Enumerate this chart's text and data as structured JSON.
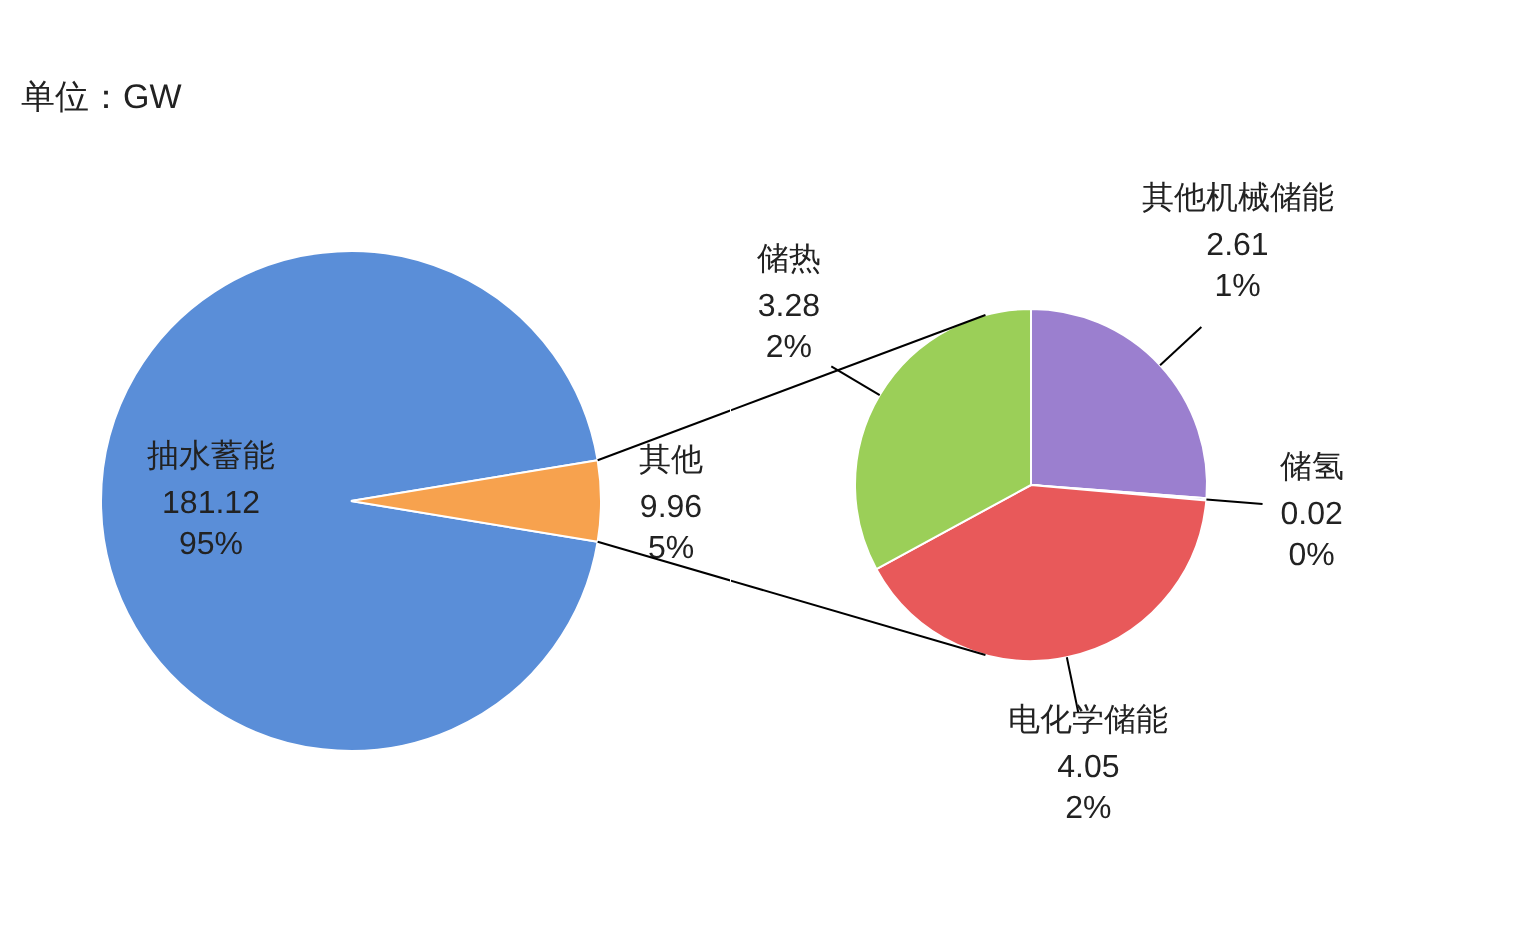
{
  "chart_data": [
    {
      "type": "pie",
      "title": "单位：GW",
      "categories": [
        "抽水蓄能",
        "其他"
      ],
      "values": [
        181.12,
        9.96
      ],
      "colors": [
        "#5a8ed8",
        "#f7a24e"
      ],
      "value_labels": [
        "181.12\n95%",
        "9.96\n5%"
      ]
    },
    {
      "type": "pie",
      "categories": [
        "其他机械储能",
        "储氢",
        "电化学储能",
        "储热"
      ],
      "values": [
        2.61,
        0.02,
        4.05,
        3.28
      ],
      "colors": [
        "#9b7fcf",
        "#6f93d6",
        "#e8595a",
        "#9bcf58"
      ],
      "value_labels": [
        "2.61\n1%",
        "0.02\n0%",
        "4.05\n2%",
        "3.28\n2%"
      ]
    }
  ]
}
